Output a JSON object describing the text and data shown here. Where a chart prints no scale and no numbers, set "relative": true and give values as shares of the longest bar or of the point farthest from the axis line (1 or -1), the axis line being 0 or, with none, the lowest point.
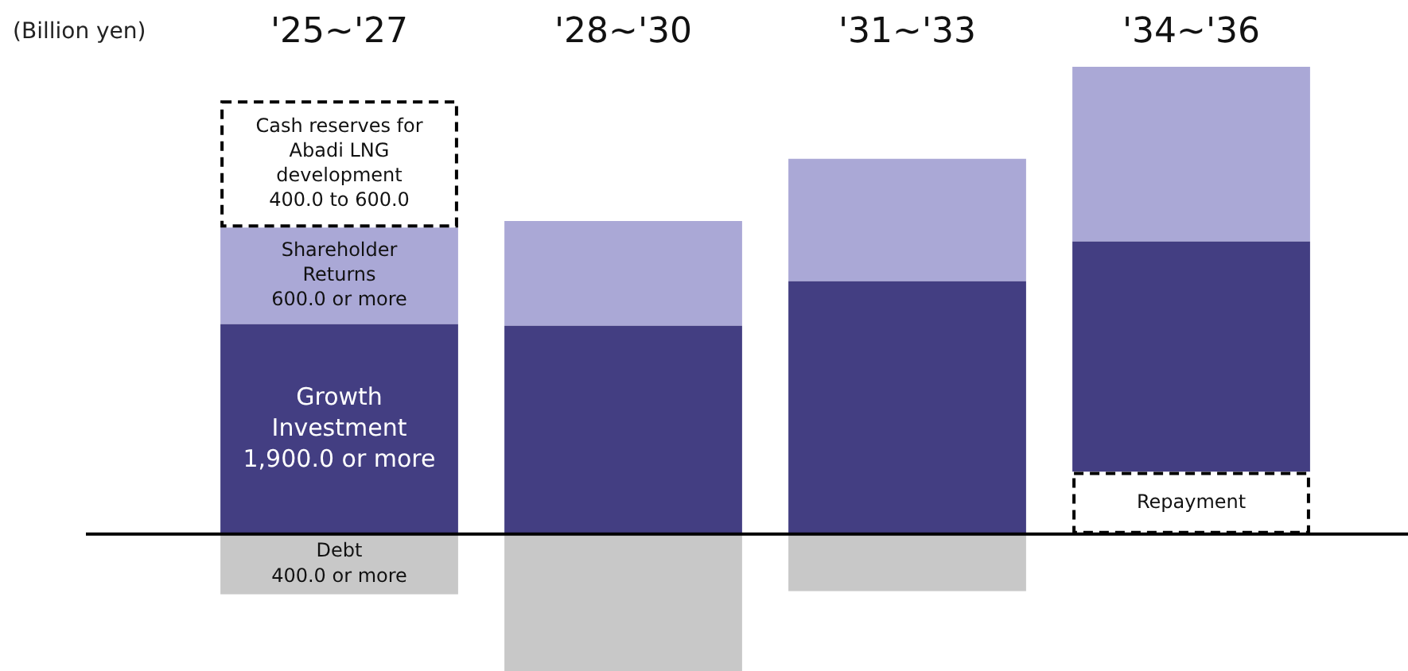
{
  "chart_data": {
    "type": "bar",
    "stacked": true,
    "relative": true,
    "ylabel": "(Billion yen)",
    "categories": [
      "'25~'27",
      "'28~'30",
      "'31~'33",
      "'34~'36"
    ],
    "series": [
      {
        "name": "Repayment",
        "color": "#000000",
        "line_style": "dashed",
        "values": [
          null,
          null,
          null,
          0.133
        ]
      },
      {
        "name": "Growth Investment",
        "color": "#433e82",
        "values": [
          0.449,
          0.446,
          0.541,
          0.493
        ]
      },
      {
        "name": "Shareholder Returns",
        "color": "#aaa8d6",
        "values": [
          0.207,
          0.224,
          0.262,
          0.374
        ]
      },
      {
        "name": "Cash reserves for Abadi LNG development",
        "color": "#000000",
        "line_style": "dashed",
        "values": [
          0.272,
          null,
          null,
          null
        ]
      },
      {
        "name": "Debt",
        "color": "#c8c8c8",
        "values": [
          -0.129,
          -0.293,
          -0.122,
          null
        ]
      }
    ],
    "annotations": [
      "1,900.0 or more",
      "600.0 or more",
      "400.0 to 600.0",
      "400.0 or more"
    ],
    "grid": false,
    "legend": false
  }
}
